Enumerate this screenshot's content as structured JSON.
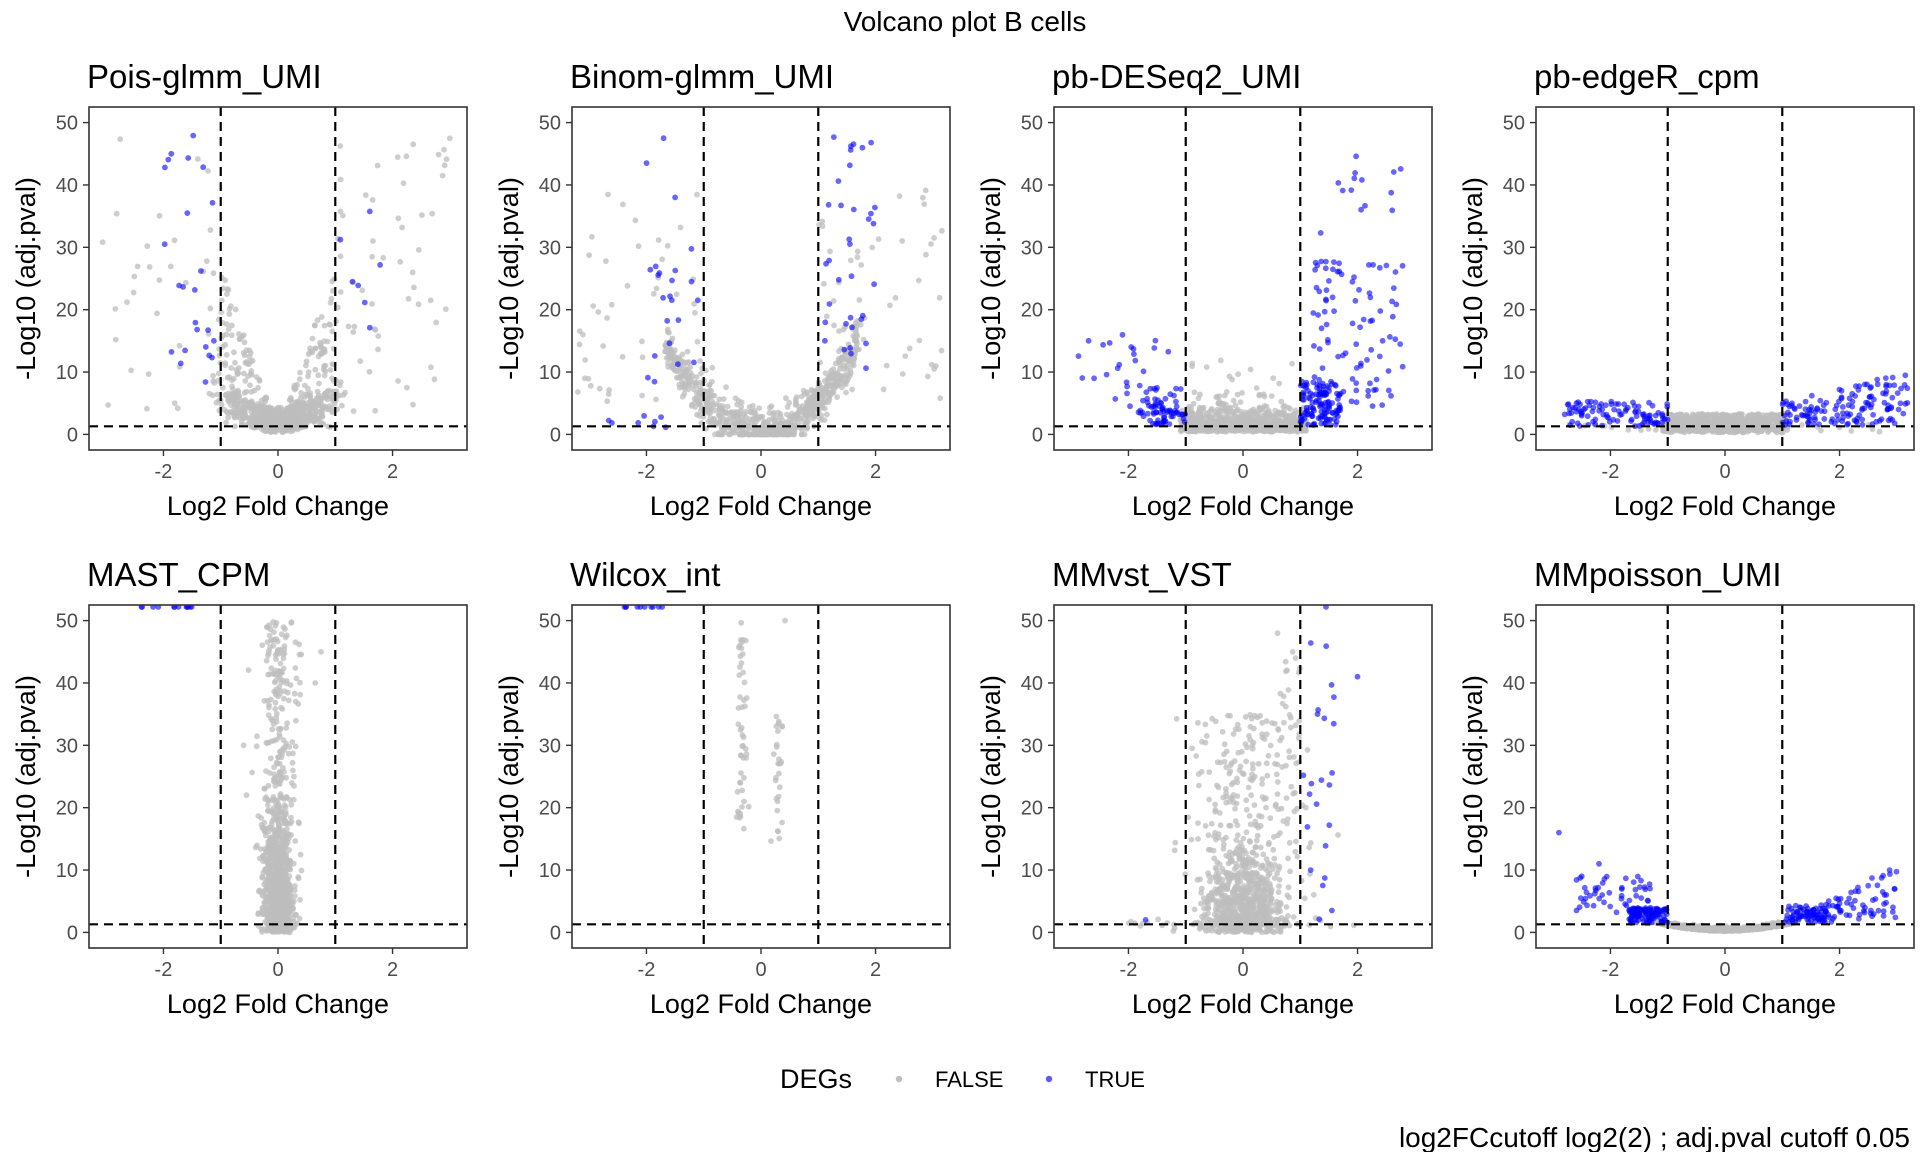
{
  "figure": {
    "title": "Volcano plot B cells",
    "caption": "log2FCcutoff log2(2) ; adj.pval cutoff 0.05"
  },
  "legend": {
    "title": "DEGs",
    "items": [
      {
        "label": "FALSE",
        "color": "#bebebe"
      },
      {
        "label": "TRUE",
        "color": "#0000ff"
      }
    ]
  },
  "colors": {
    "nonsig": "#bebebe",
    "sig": "#0000ff",
    "threshold": "#000000"
  },
  "chart_data": [
    {
      "type": "scatter",
      "title": "Pois-glmm_UMI",
      "xlabel": "Log2 Fold Change",
      "ylabel": "-Log10 (adj.pval)",
      "xlim": [
        -3.3,
        3.3
      ],
      "ylim": [
        -2.5,
        52.5
      ],
      "xticks": [
        -2,
        0,
        2
      ],
      "xtick_labels": [
        "-2",
        "0",
        "2"
      ],
      "yticks": [
        0,
        10,
        20,
        30,
        40,
        50
      ],
      "ytick_labels": [
        "0",
        "10",
        "20",
        "30",
        "40",
        "50"
      ],
      "thresholds": {
        "x": [
          -1,
          1
        ],
        "y": 1.3
      },
      "pattern": "pois"
    },
    {
      "type": "scatter",
      "title": "Binom-glmm_UMI",
      "xlabel": "Log2 Fold Change",
      "ylabel": "-Log10 (adj.pval)",
      "xlim": [
        -3.3,
        3.3
      ],
      "ylim": [
        -2.5,
        52.5
      ],
      "xticks": [
        -2,
        0,
        2
      ],
      "xtick_labels": [
        "-2",
        "0",
        "2"
      ],
      "yticks": [
        0,
        10,
        20,
        30,
        40,
        50
      ],
      "ytick_labels": [
        "0",
        "10",
        "20",
        "30",
        "40",
        "50"
      ],
      "thresholds": {
        "x": [
          -1,
          1
        ],
        "y": 1.3
      },
      "pattern": "binom"
    },
    {
      "type": "scatter",
      "title": "pb-DESeq2_UMI",
      "xlabel": "Log2 Fold Change",
      "ylabel": "-Log10 (adj.pval)",
      "xlim": [
        -3.3,
        3.3
      ],
      "ylim": [
        -2.5,
        52.5
      ],
      "xticks": [
        -2,
        0,
        2
      ],
      "xtick_labels": [
        "-2",
        "0",
        "2"
      ],
      "yticks": [
        0,
        10,
        20,
        30,
        40,
        50
      ],
      "ytick_labels": [
        "0",
        "10",
        "20",
        "30",
        "40",
        "50"
      ],
      "thresholds": {
        "x": [
          -1,
          1
        ],
        "y": 1.3
      },
      "pattern": "deseq"
    },
    {
      "type": "scatter",
      "title": "pb-edgeR_cpm",
      "xlabel": "Log2 Fold Change",
      "ylabel": "-Log10 (adj.pval)",
      "xlim": [
        -3.3,
        3.3
      ],
      "ylim": [
        -2.5,
        52.5
      ],
      "xticks": [
        -2,
        0,
        2
      ],
      "xtick_labels": [
        "-2",
        "0",
        "2"
      ],
      "yticks": [
        0,
        10,
        20,
        30,
        40,
        50
      ],
      "ytick_labels": [
        "0",
        "10",
        "20",
        "30",
        "40",
        "50"
      ],
      "thresholds": {
        "x": [
          -1,
          1
        ],
        "y": 1.3
      },
      "pattern": "edger"
    },
    {
      "type": "scatter",
      "title": "MAST_CPM",
      "xlabel": "Log2 Fold Change",
      "ylabel": "-Log10 (adj.pval)",
      "xlim": [
        -3.3,
        3.3
      ],
      "ylim": [
        -2.5,
        52.5
      ],
      "xticks": [
        -2,
        0,
        2
      ],
      "xtick_labels": [
        "-2",
        "0",
        "2"
      ],
      "yticks": [
        0,
        10,
        20,
        30,
        40,
        50
      ],
      "ytick_labels": [
        "0",
        "10",
        "20",
        "30",
        "40",
        "50"
      ],
      "thresholds": {
        "x": [
          -1,
          1
        ],
        "y": 1.3
      },
      "pattern": "mast"
    },
    {
      "type": "scatter",
      "title": "Wilcox_int",
      "xlabel": "Log2 Fold Change",
      "ylabel": "-Log10 (adj.pval)",
      "xlim": [
        -3.3,
        3.3
      ],
      "ylim": [
        -2.5,
        52.5
      ],
      "xticks": [
        -2,
        0,
        2
      ],
      "xtick_labels": [
        "-2",
        "0",
        "2"
      ],
      "yticks": [
        0,
        10,
        20,
        30,
        40,
        50
      ],
      "ytick_labels": [
        "0",
        "10",
        "20",
        "30",
        "40",
        "50"
      ],
      "thresholds": {
        "x": [
          -1,
          1
        ],
        "y": 1.3
      },
      "pattern": "wilcox"
    },
    {
      "type": "scatter",
      "title": "MMvst_VST",
      "xlabel": "Log2 Fold Change",
      "ylabel": "-Log10 (adj.pval)",
      "xlim": [
        -3.3,
        3.3
      ],
      "ylim": [
        -2.5,
        52.5
      ],
      "xticks": [
        -2,
        0,
        2
      ],
      "xtick_labels": [
        "-2",
        "0",
        "2"
      ],
      "yticks": [
        0,
        10,
        20,
        30,
        40,
        50
      ],
      "ytick_labels": [
        "0",
        "10",
        "20",
        "30",
        "40",
        "50"
      ],
      "thresholds": {
        "x": [
          -1,
          1
        ],
        "y": 1.3
      },
      "pattern": "mmvst"
    },
    {
      "type": "scatter",
      "title": "MMpoisson_UMI",
      "xlabel": "Log2 Fold Change",
      "ylabel": "-Log10 (adj.pval)",
      "xlim": [
        -3.3,
        3.3
      ],
      "ylim": [
        -2.5,
        52.5
      ],
      "xticks": [
        -2,
        0,
        2
      ],
      "xtick_labels": [
        "-2",
        "0",
        "2"
      ],
      "yticks": [
        0,
        10,
        20,
        30,
        40,
        50
      ],
      "ytick_labels": [
        "0",
        "10",
        "20",
        "30",
        "40",
        "50"
      ],
      "thresholds": {
        "x": [
          -1,
          1
        ],
        "y": 1.3
      },
      "pattern": "mmpois"
    }
  ]
}
